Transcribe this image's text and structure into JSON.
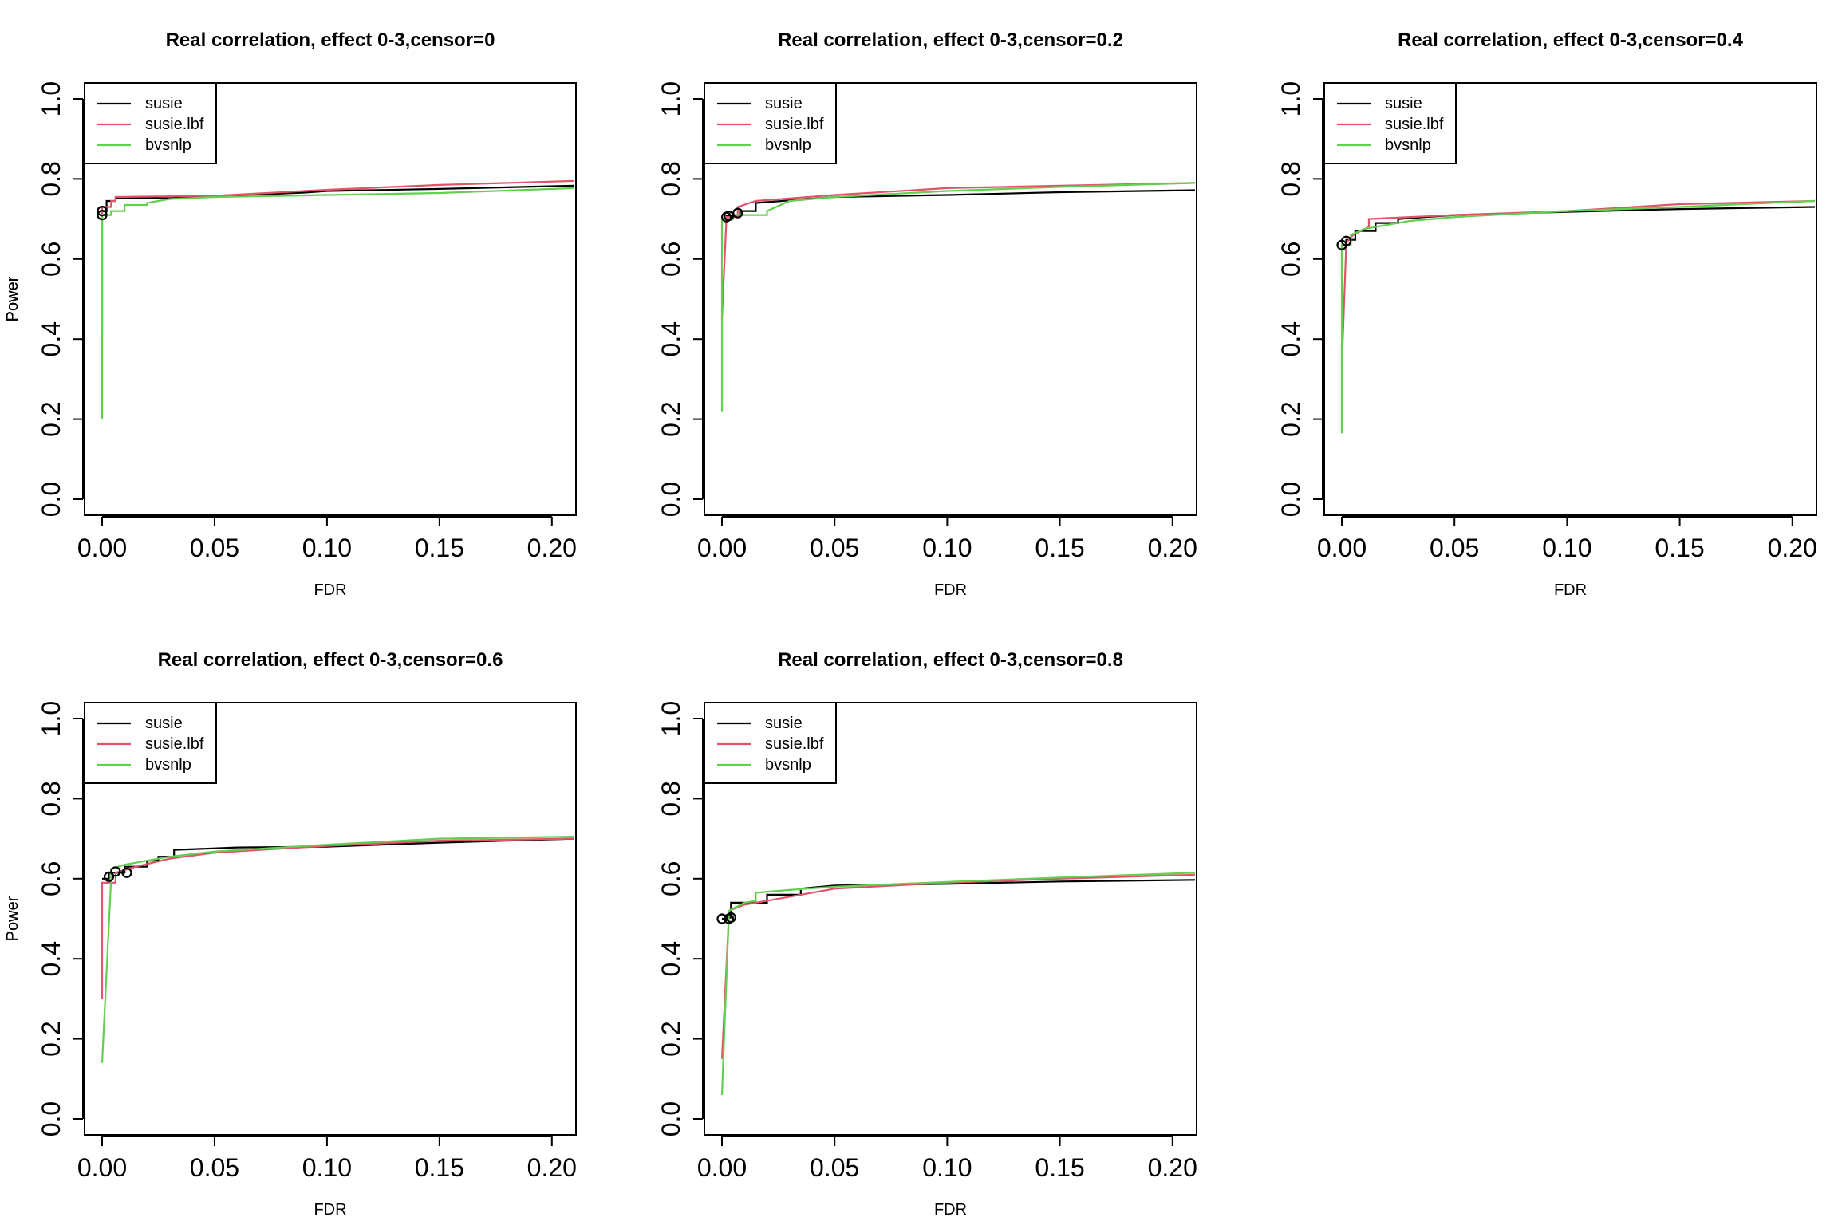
{
  "chart_data": [
    {
      "type": "line",
      "title": "Real correlation, effect 0-3,censor=0",
      "xlabel": "FDR",
      "ylabel": "Power",
      "xlim": [
        0,
        0.21
      ],
      "ylim": [
        0,
        1.0
      ],
      "xticks": [
        "0.00",
        "0.05",
        "0.10",
        "0.15",
        "0.20"
      ],
      "yticks": [
        "0.0",
        "0.2",
        "0.4",
        "0.6",
        "0.8",
        "1.0"
      ],
      "legend": "top-left",
      "series": [
        {
          "name": "susie",
          "color": "#000000",
          "x": [
            0,
            0,
            0.002,
            0.002,
            0.006,
            0.006,
            0.03,
            0.05,
            0.09,
            0.1,
            0.15,
            0.21
          ],
          "y": [
            0.71,
            0.72,
            0.72,
            0.745,
            0.745,
            0.752,
            0.752,
            0.757,
            0.766,
            0.77,
            0.775,
            0.783
          ]
        },
        {
          "name": "susie.lbf",
          "color": "#DF536B",
          "x": [
            0,
            0,
            0.004,
            0.004,
            0.006,
            0.006,
            0.05,
            0.1,
            0.15,
            0.21
          ],
          "y": [
            0.42,
            0.73,
            0.73,
            0.745,
            0.745,
            0.755,
            0.758,
            0.773,
            0.785,
            0.795
          ]
        },
        {
          "name": "bvsnlp",
          "color": "#61D04F",
          "x": [
            0,
            0,
            0.004,
            0.004,
            0.01,
            0.01,
            0.02,
            0.02,
            0.03,
            0.05,
            0.1,
            0.15,
            0.21
          ],
          "y": [
            0.2,
            0.71,
            0.71,
            0.72,
            0.72,
            0.735,
            0.735,
            0.74,
            0.75,
            0.755,
            0.76,
            0.765,
            0.777
          ]
        }
      ],
      "points": [
        {
          "x": 0.0,
          "y": 0.71
        },
        {
          "x": 0.0,
          "y": 0.72
        }
      ]
    },
    {
      "type": "line",
      "title": "Real correlation, effect 0-3,censor=0.2",
      "xlabel": "FDR",
      "ylabel": "Power",
      "xlim": [
        0,
        0.21
      ],
      "ylim": [
        0,
        1.0
      ],
      "xticks": [
        "0.00",
        "0.05",
        "0.10",
        "0.15",
        "0.20"
      ],
      "yticks": [
        "0.0",
        "0.2",
        "0.4",
        "0.6",
        "0.8",
        "1.0"
      ],
      "legend": "top-left",
      "series": [
        {
          "name": "susie",
          "color": "#000000",
          "x": [
            0,
            0.002,
            0.002,
            0.008,
            0.008,
            0.015,
            0.015,
            0.05,
            0.1,
            0.15,
            0.21
          ],
          "y": [
            0.7,
            0.7,
            0.707,
            0.707,
            0.72,
            0.72,
            0.74,
            0.755,
            0.76,
            0.767,
            0.772
          ]
        },
        {
          "name": "susie.lbf",
          "color": "#DF536B",
          "x": [
            0,
            0.002,
            0.002,
            0.007,
            0.007,
            0.015,
            0.05,
            0.1,
            0.15,
            0.21
          ],
          "y": [
            0.45,
            0.7,
            0.705,
            0.705,
            0.73,
            0.745,
            0.76,
            0.777,
            0.783,
            0.79
          ]
        },
        {
          "name": "bvsnlp",
          "color": "#61D04F",
          "x": [
            0,
            0,
            0.005,
            0.005,
            0.02,
            0.02,
            0.03,
            0.05,
            0.1,
            0.15,
            0.21
          ],
          "y": [
            0.22,
            0.7,
            0.7,
            0.71,
            0.71,
            0.72,
            0.745,
            0.755,
            0.77,
            0.78,
            0.79
          ]
        }
      ],
      "points": [
        {
          "x": 0.002,
          "y": 0.705
        },
        {
          "x": 0.003,
          "y": 0.708
        },
        {
          "x": 0.007,
          "y": 0.715
        }
      ]
    },
    {
      "type": "line",
      "title": "Real correlation, effect 0-3,censor=0.4",
      "xlabel": "FDR",
      "ylabel": "Power",
      "xlim": [
        0,
        0.21
      ],
      "ylim": [
        0,
        1.0
      ],
      "xticks": [
        "0.00",
        "0.05",
        "0.10",
        "0.15",
        "0.20"
      ],
      "yticks": [
        "0.0",
        "0.2",
        "0.4",
        "0.6",
        "0.8",
        "1.0"
      ],
      "legend": "top-left",
      "series": [
        {
          "name": "susie",
          "color": "#000000",
          "x": [
            0,
            0.002,
            0.002,
            0.006,
            0.006,
            0.015,
            0.015,
            0.025,
            0.025,
            0.05,
            0.1,
            0.15,
            0.21
          ],
          "y": [
            0.635,
            0.635,
            0.648,
            0.648,
            0.67,
            0.67,
            0.69,
            0.69,
            0.7,
            0.71,
            0.718,
            0.725,
            0.73
          ]
        },
        {
          "name": "susie.lbf",
          "color": "#DF536B",
          "x": [
            0,
            0.002,
            0.002,
            0.005,
            0.005,
            0.012,
            0.012,
            0.05,
            0.1,
            0.15,
            0.21
          ],
          "y": [
            0.33,
            0.64,
            0.64,
            0.66,
            0.66,
            0.68,
            0.7,
            0.71,
            0.72,
            0.737,
            0.745
          ]
        },
        {
          "name": "bvsnlp",
          "color": "#61D04F",
          "x": [
            0,
            0,
            0.004,
            0.004,
            0.01,
            0.02,
            0.03,
            0.05,
            0.1,
            0.15,
            0.21
          ],
          "y": [
            0.165,
            0.635,
            0.635,
            0.66,
            0.675,
            0.685,
            0.695,
            0.705,
            0.72,
            0.73,
            0.745
          ]
        }
      ],
      "points": [
        {
          "x": 0.0,
          "y": 0.635
        },
        {
          "x": 0.002,
          "y": 0.645
        }
      ]
    },
    {
      "type": "line",
      "title": "Real correlation, effect 0-3,censor=0.6",
      "xlabel": "FDR",
      "ylabel": "Power",
      "xlim": [
        0,
        0.21
      ],
      "ylim": [
        0,
        1.0
      ],
      "xticks": [
        "0.00",
        "0.05",
        "0.10",
        "0.15",
        "0.20"
      ],
      "yticks": [
        "0.0",
        "0.2",
        "0.4",
        "0.6",
        "0.8",
        "1.0"
      ],
      "legend": "top-left",
      "series": [
        {
          "name": "susie",
          "color": "#000000",
          "x": [
            0,
            0.003,
            0.003,
            0.01,
            0.01,
            0.02,
            0.02,
            0.025,
            0.025,
            0.032,
            0.032,
            0.06,
            0.1,
            0.15,
            0.21
          ],
          "y": [
            0.6,
            0.6,
            0.615,
            0.615,
            0.63,
            0.63,
            0.645,
            0.645,
            0.655,
            0.655,
            0.672,
            0.678,
            0.68,
            0.69,
            0.7
          ]
        },
        {
          "name": "susie.lbf",
          "color": "#DF536B",
          "x": [
            0,
            0,
            0.006,
            0.006,
            0.015,
            0.03,
            0.05,
            0.1,
            0.15,
            0.21
          ],
          "y": [
            0.3,
            0.59,
            0.59,
            0.615,
            0.63,
            0.65,
            0.665,
            0.682,
            0.695,
            0.7
          ]
        },
        {
          "name": "bvsnlp",
          "color": "#61D04F",
          "x": [
            0,
            0.004,
            0.004,
            0.01,
            0.02,
            0.03,
            0.05,
            0.1,
            0.15,
            0.21
          ],
          "y": [
            0.14,
            0.6,
            0.625,
            0.635,
            0.645,
            0.655,
            0.668,
            0.685,
            0.7,
            0.705
          ]
        }
      ],
      "points": [
        {
          "x": 0.003,
          "y": 0.605
        },
        {
          "x": 0.006,
          "y": 0.618
        },
        {
          "x": 0.011,
          "y": 0.615
        }
      ]
    },
    {
      "type": "line",
      "title": "Real correlation, effect 0-3,censor=0.8",
      "xlabel": "FDR",
      "ylabel": "Power",
      "xlim": [
        0,
        0.21
      ],
      "ylim": [
        0,
        1.0
      ],
      "xticks": [
        "0.00",
        "0.05",
        "0.10",
        "0.15",
        "0.20"
      ],
      "yticks": [
        "0.0",
        "0.2",
        "0.4",
        "0.6",
        "0.8",
        "1.0"
      ],
      "legend": "top-left",
      "series": [
        {
          "name": "susie",
          "color": "#000000",
          "x": [
            0,
            0.003,
            0.003,
            0.004,
            0.004,
            0.02,
            0.02,
            0.035,
            0.035,
            0.05,
            0.1,
            0.15,
            0.21
          ],
          "y": [
            0.5,
            0.5,
            0.503,
            0.503,
            0.54,
            0.54,
            0.56,
            0.56,
            0.575,
            0.583,
            0.587,
            0.593,
            0.597
          ]
        },
        {
          "name": "susie.lbf",
          "color": "#DF536B",
          "x": [
            0,
            0.003,
            0.003,
            0.01,
            0.02,
            0.03,
            0.05,
            0.1,
            0.15,
            0.21
          ],
          "y": [
            0.15,
            0.5,
            0.52,
            0.535,
            0.545,
            0.555,
            0.575,
            0.59,
            0.6,
            0.61
          ]
        },
        {
          "name": "bvsnlp",
          "color": "#61D04F",
          "x": [
            0,
            0.003,
            0.003,
            0.01,
            0.015,
            0.015,
            0.03,
            0.05,
            0.1,
            0.15,
            0.21
          ],
          "y": [
            0.06,
            0.5,
            0.52,
            0.54,
            0.545,
            0.565,
            0.572,
            0.58,
            0.592,
            0.603,
            0.615
          ]
        }
      ],
      "points": [
        {
          "x": 0.0,
          "y": 0.5
        },
        {
          "x": 0.003,
          "y": 0.5
        },
        {
          "x": 0.004,
          "y": 0.503
        }
      ]
    }
  ]
}
